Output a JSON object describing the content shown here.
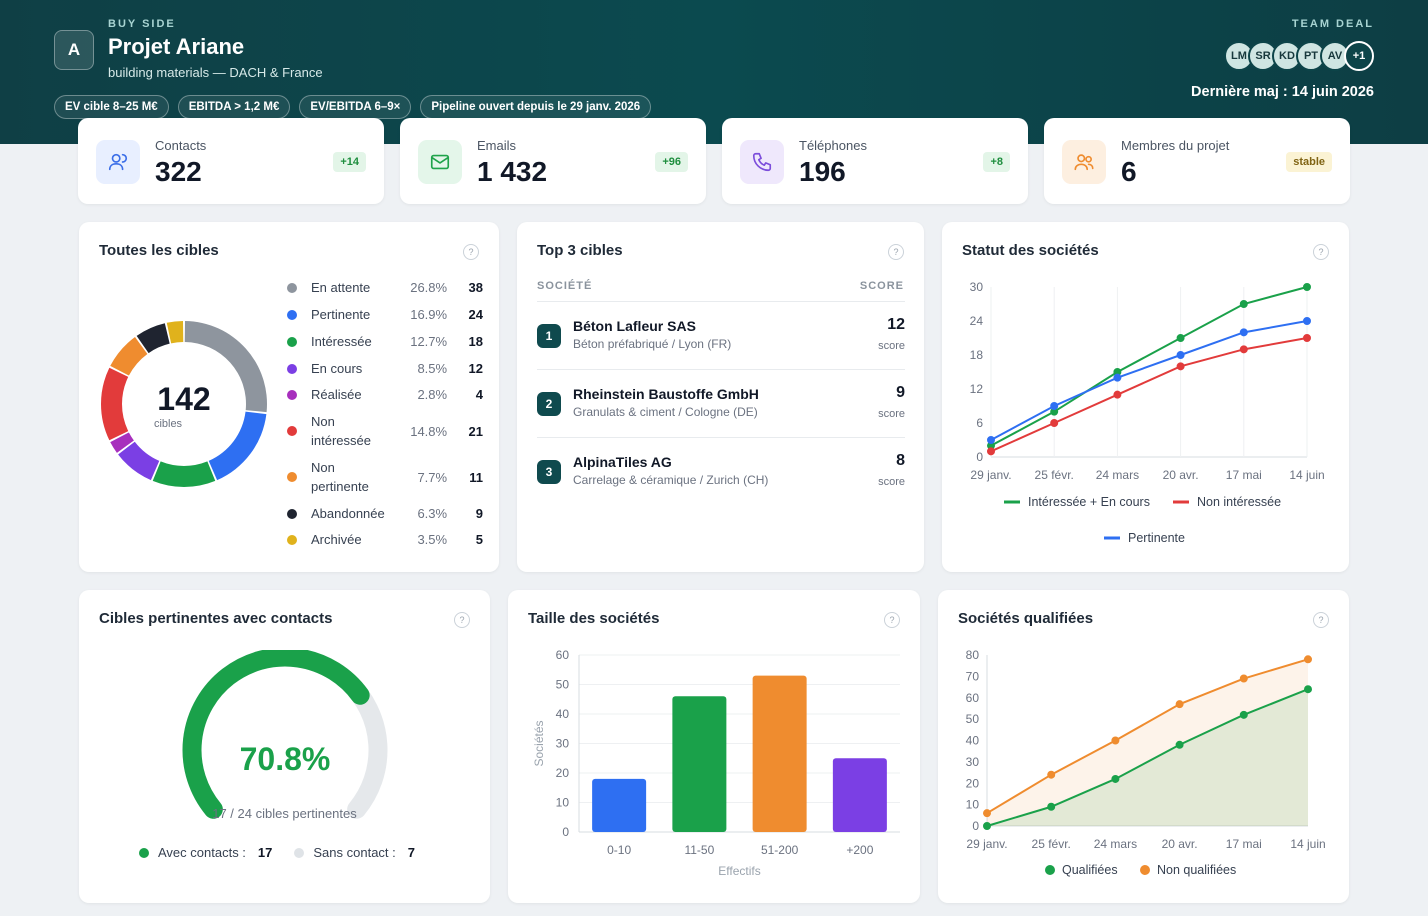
{
  "header": {
    "eyebrow": "BUY SIDE",
    "logo_letter": "A",
    "title": "Projet Ariane",
    "subtitle": "building materials — DACH & France",
    "chips": [
      "EV cible 8–25 M€",
      "EBITDA > 1,2 M€",
      "EV/EBITDA 6–9×",
      "Pipeline ouvert depuis le 29 janv. 2026"
    ],
    "team_label": "TEAM DEAL",
    "team": [
      "LM",
      "SR",
      "KD",
      "PT",
      "AV"
    ],
    "team_more": "+1",
    "updated": "Dernière maj : 14 juin 2026"
  },
  "kpis": [
    {
      "label": "Contacts",
      "value": "322",
      "badge": "+14",
      "icon": "users-icon",
      "color": "#3b6ee8"
    },
    {
      "label": "Emails",
      "value": "1 432",
      "badge": "+96",
      "icon": "mail-icon",
      "color": "#1fa34a"
    },
    {
      "label": "Téléphones",
      "value": "196",
      "badge": "+8",
      "icon": "phone-icon",
      "color": "#7c4ddb"
    },
    {
      "label": "Membres du projet",
      "value": "6",
      "badge": "stable",
      "icon": "team-icon",
      "color": "#ef8c2f"
    }
  ],
  "all_targets": {
    "title": "Toutes les cibles",
    "total": "142",
    "total_label": "cibles",
    "items": [
      {
        "name": "En attente",
        "pct": "26.8%",
        "count": "38",
        "value": 38,
        "color": "#8e959e"
      },
      {
        "name": "Pertinente",
        "pct": "16.9%",
        "count": "24",
        "value": 24,
        "color": "#2e6ff2"
      },
      {
        "name": "Intéressée",
        "pct": "12.7%",
        "count": "18",
        "value": 18,
        "color": "#1aa14a"
      },
      {
        "name": "En cours",
        "pct": "8.5%",
        "count": "12",
        "value": 12,
        "color": "#7b3fe4"
      },
      {
        "name": "Réalisée",
        "pct": "2.8%",
        "count": "4",
        "value": 4,
        "color": "#a72fbd"
      },
      {
        "name": "Non intéressée",
        "pct": "14.8%",
        "count": "21",
        "value": 21,
        "color": "#e23b3b"
      },
      {
        "name": "Non pertinente",
        "pct": "7.7%",
        "count": "11",
        "value": 11,
        "color": "#ef8c2f"
      },
      {
        "name": "Abandonnée",
        "pct": "6.3%",
        "count": "9",
        "value": 9,
        "color": "#1f2430"
      },
      {
        "name": "Archivée",
        "pct": "3.5%",
        "count": "5",
        "value": 5,
        "color": "#e0b21c"
      }
    ]
  },
  "top3": {
    "title": "Top 3 cibles",
    "col_company": "SOCIÉTÉ",
    "col_score": "SCORE",
    "score_label": "score",
    "rows": [
      {
        "rank": "1",
        "name": "Béton Lafleur SAS",
        "desc": "Béton préfabriqué / Lyon (FR)",
        "score": "12"
      },
      {
        "rank": "2",
        "name": "Rheinstein Baustoffe GmbH",
        "desc": "Granulats & ciment / Cologne (DE)",
        "score": "9"
      },
      {
        "rank": "3",
        "name": "AlpinaTiles AG",
        "desc": "Carrelage & céramique / Zurich (CH)",
        "score": "8"
      }
    ]
  },
  "pertinent_contacts": {
    "title": "Cibles pertinentes avec contacts",
    "percent": "70.8%",
    "fraction": 0.708,
    "caption": "17 / 24 cibles pertinentes",
    "with_label": "Avec contacts :",
    "with_value": "17",
    "without_label": "Sans contact :",
    "without_value": "7",
    "with_color": "#1aa14a",
    "without_color": "#e5e8eb"
  },
  "chart_data": [
    {
      "id": "status",
      "type": "line",
      "title": "Statut des sociétés",
      "categories": [
        "29 janv.",
        "25 févr.",
        "24 mars",
        "20 avr.",
        "17 mai",
        "14 juin"
      ],
      "ylim": [
        0,
        30
      ],
      "yticks": [
        "0",
        "6",
        "12",
        "18",
        "24",
        "30"
      ],
      "grid": "vertical",
      "series": [
        {
          "name": "Intéressée + En cours",
          "color": "#1aa14a",
          "values": [
            2,
            8,
            15,
            21,
            27,
            30
          ]
        },
        {
          "name": "Non intéressée",
          "color": "#e23b3b",
          "values": [
            1,
            6,
            11,
            16,
            19,
            21
          ]
        },
        {
          "name": "Pertinente",
          "color": "#2e6ff2",
          "values": [
            3,
            9,
            14,
            18,
            22,
            24
          ]
        }
      ]
    },
    {
      "id": "size",
      "type": "bar",
      "title": "Taille des sociétés",
      "categories": [
        "0-10",
        "11-50",
        "51-200",
        "+200"
      ],
      "values": [
        18,
        46,
        53,
        25
      ],
      "colors": [
        "#2e6ff2",
        "#1aa14a",
        "#ef8c2f",
        "#7b3fe4"
      ],
      "xlabel": "Effectifs",
      "ylabel": "Sociétés",
      "ylim": [
        0,
        60
      ],
      "yticks": [
        "0",
        "10",
        "20",
        "30",
        "40",
        "50",
        "60"
      ]
    },
    {
      "id": "qualified",
      "type": "area",
      "title": "Sociétés qualifiées",
      "categories": [
        "29 janv.",
        "25 févr.",
        "24 mars",
        "20 avr.",
        "17 mai",
        "14 juin"
      ],
      "ylim": [
        0,
        80
      ],
      "yticks": [
        "0",
        "10",
        "20",
        "30",
        "40",
        "50",
        "60",
        "70",
        "80"
      ],
      "series": [
        {
          "name": "Qualifiées",
          "color": "#1aa14a",
          "fill": "rgba(26,161,74,0.12)",
          "values": [
            0,
            9,
            22,
            38,
            52,
            64
          ]
        },
        {
          "name": "Non qualifiées",
          "color": "#ef8c2f",
          "fill": "rgba(239,140,47,0.10)",
          "values": [
            6,
            24,
            40,
            57,
            69,
            78
          ]
        }
      ]
    }
  ]
}
